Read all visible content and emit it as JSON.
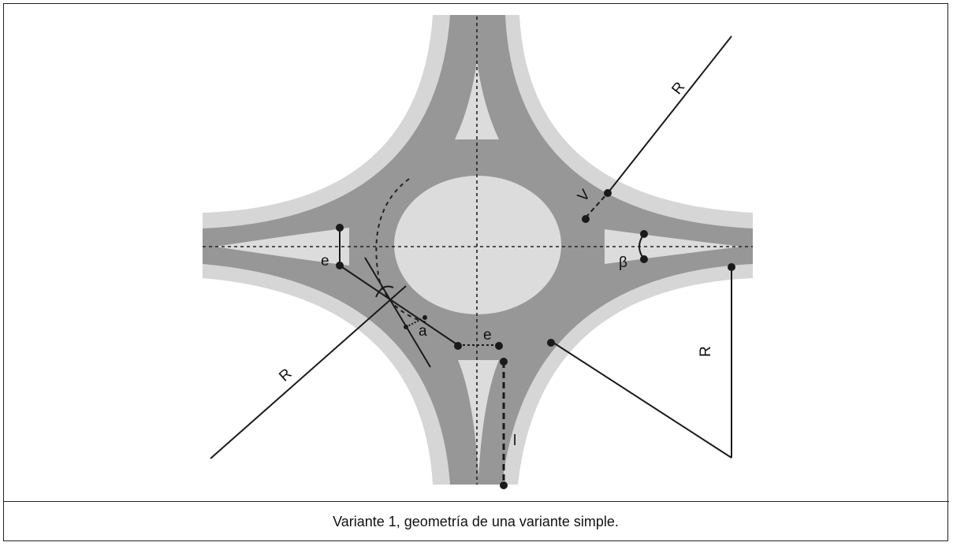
{
  "caption": "Variante 1, geometría de una variante simple.",
  "labels": {
    "e_left": "e",
    "e_bottom": "e",
    "a": "a",
    "beta": "β",
    "l": "l",
    "v": "V",
    "r_top_right": "R",
    "r_right": "R",
    "r_bottom_left": "R"
  },
  "colors": {
    "road": "#979797",
    "shoulder": "#d6d6d6",
    "island": "#dcdcdc",
    "line": "#1a1a1a",
    "background": "#ffffff"
  }
}
